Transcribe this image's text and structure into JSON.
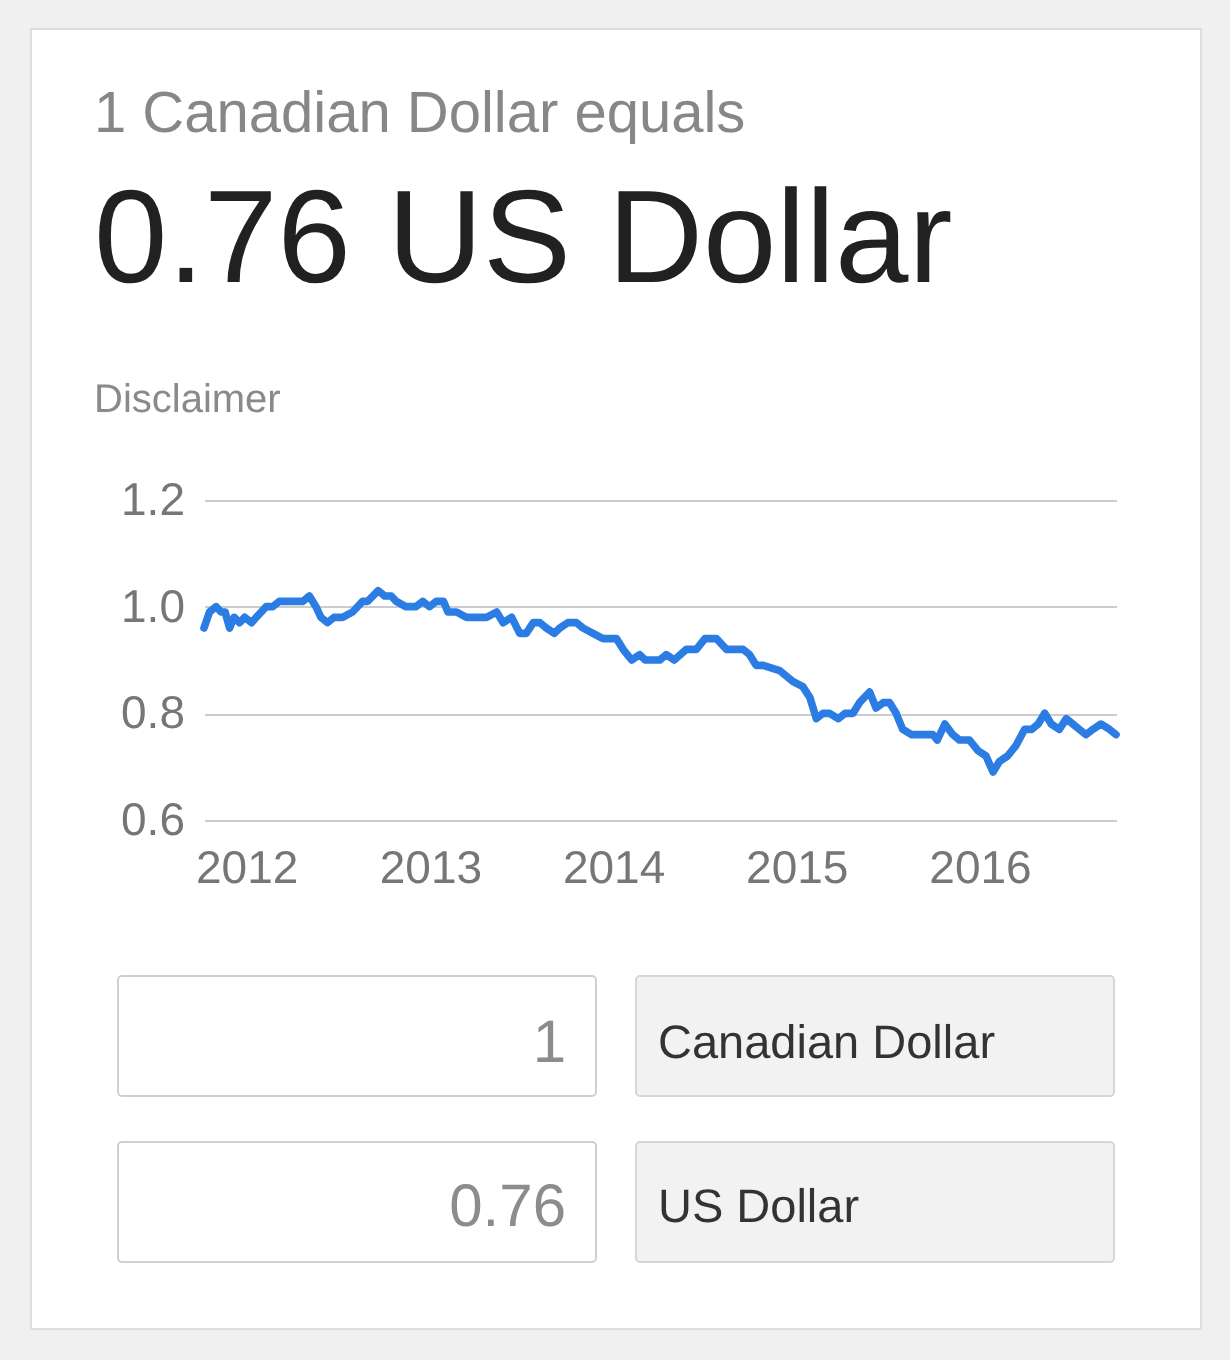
{
  "chart_data": {
    "type": "line",
    "title": "1 Canadian Dollar equals",
    "subtitle": "0.76 US Dollar",
    "annotations": [
      "Disclaimer",
      "1",
      "Canadian Dollar",
      "0.76",
      "US Dollar"
    ],
    "x": [
      "2011-10-09",
      "2011-10-20",
      "2011-11-02",
      "2011-11-12",
      "2011-11-20",
      "2011-11-29",
      "2011-12-08",
      "2011-12-19",
      "2011-12-29",
      "2012-01-12",
      "2012-01-21",
      "2012-02-10",
      "2012-02-23",
      "2012-03-07",
      "2012-03-21",
      "2012-04-03",
      "2012-04-23",
      "2012-05-06",
      "2012-05-19",
      "2012-05-29",
      "2012-06-11",
      "2012-06-24",
      "2012-07-11",
      "2012-07-31",
      "2012-08-20",
      "2012-08-30",
      "2012-09-20",
      "2012-10-03",
      "2012-10-16",
      "2012-10-26",
      "2012-11-14",
      "2012-12-04",
      "2012-12-18",
      "2012-12-31",
      "2013-01-14",
      "2013-01-28",
      "2013-02-06",
      "2013-02-23",
      "2013-03-15",
      "2013-04-04",
      "2013-04-24",
      "2013-05-14",
      "2013-05-27",
      "2013-06-13",
      "2013-06-29",
      "2013-07-12",
      "2013-07-26",
      "2013-08-08",
      "2013-08-21",
      "2013-09-06",
      "2013-09-17",
      "2013-10-03",
      "2013-10-20",
      "2013-11-02",
      "2013-11-22",
      "2013-12-12",
      "2014-01-08",
      "2014-01-21",
      "2014-02-07",
      "2014-02-23",
      "2014-03-06",
      "2014-03-22",
      "2014-04-04",
      "2014-04-17",
      "2014-05-03",
      "2014-05-27",
      "2014-06-16",
      "2014-07-03",
      "2014-07-26",
      "2014-08-15",
      "2014-09-17",
      "2014-09-30",
      "2014-10-13",
      "2014-10-27",
      "2014-11-29",
      "2014-12-25",
      "2015-01-14",
      "2015-01-28",
      "2015-02-10",
      "2015-02-23",
      "2015-03-08",
      "2015-03-26",
      "2015-04-08",
      "2015-04-24",
      "2015-05-07",
      "2015-05-27",
      "2015-06-09",
      "2015-06-23",
      "2015-07-06",
      "2015-07-19",
      "2015-08-01",
      "2015-08-19",
      "2015-09-03",
      "2015-09-30",
      "2015-10-09",
      "2015-10-24",
      "2015-11-09",
      "2015-11-22",
      "2015-12-12",
      "2015-12-29",
      "2016-01-14",
      "2016-01-28",
      "2016-02-10",
      "2016-02-26",
      "2016-03-14",
      "2016-03-31",
      "2016-04-14",
      "2016-04-27",
      "2016-05-10",
      "2016-05-23",
      "2016-06-08",
      "2016-06-22",
      "2016-07-05",
      "2016-07-18",
      "2016-07-31",
      "2016-08-14",
      "2016-08-30",
      "2016-09-16",
      "2016-09-29"
    ],
    "series": [
      {
        "color": "#2b7de3",
        "values": [
          0.96,
          0.99,
          1.0,
          0.99,
          0.99,
          0.96,
          0.98,
          0.97,
          0.98,
          0.97,
          0.98,
          1.0,
          1.0,
          1.01,
          1.01,
          1.01,
          1.01,
          1.02,
          1.0,
          0.98,
          0.97,
          0.98,
          0.98,
          0.99,
          1.01,
          1.01,
          1.03,
          1.02,
          1.02,
          1.01,
          1.0,
          1.0,
          1.01,
          1.0,
          1.01,
          1.01,
          0.99,
          0.99,
          0.98,
          0.98,
          0.98,
          0.99,
          0.97,
          0.98,
          0.95,
          0.95,
          0.97,
          0.97,
          0.96,
          0.95,
          0.96,
          0.97,
          0.97,
          0.96,
          0.95,
          0.94,
          0.94,
          0.92,
          0.9,
          0.91,
          0.9,
          0.9,
          0.9,
          0.91,
          0.9,
          0.92,
          0.92,
          0.94,
          0.94,
          0.92,
          0.92,
          0.91,
          0.89,
          0.89,
          0.88,
          0.86,
          0.85,
          0.83,
          0.79,
          0.8,
          0.8,
          0.79,
          0.8,
          0.8,
          0.82,
          0.84,
          0.81,
          0.82,
          0.82,
          0.8,
          0.77,
          0.76,
          0.76,
          0.76,
          0.75,
          0.78,
          0.76,
          0.75,
          0.75,
          0.73,
          0.72,
          0.69,
          0.71,
          0.72,
          0.74,
          0.77,
          0.77,
          0.78,
          0.8,
          0.78,
          0.77,
          0.79,
          0.78,
          0.77,
          0.76,
          0.77,
          0.78,
          0.77,
          0.76
        ]
      }
    ],
    "xlim": [
      "2011-10-09",
      "2016-09-29"
    ],
    "xticks": [
      "2012",
      "2013",
      "2014",
      "2015",
      "2016"
    ],
    "ylim": [
      0.6,
      1.2
    ],
    "yticks": [
      0.6,
      0.8,
      {
        "value": 1,
        "label": "1.0"
      },
      1.2
    ],
    "grid": "y"
  }
}
